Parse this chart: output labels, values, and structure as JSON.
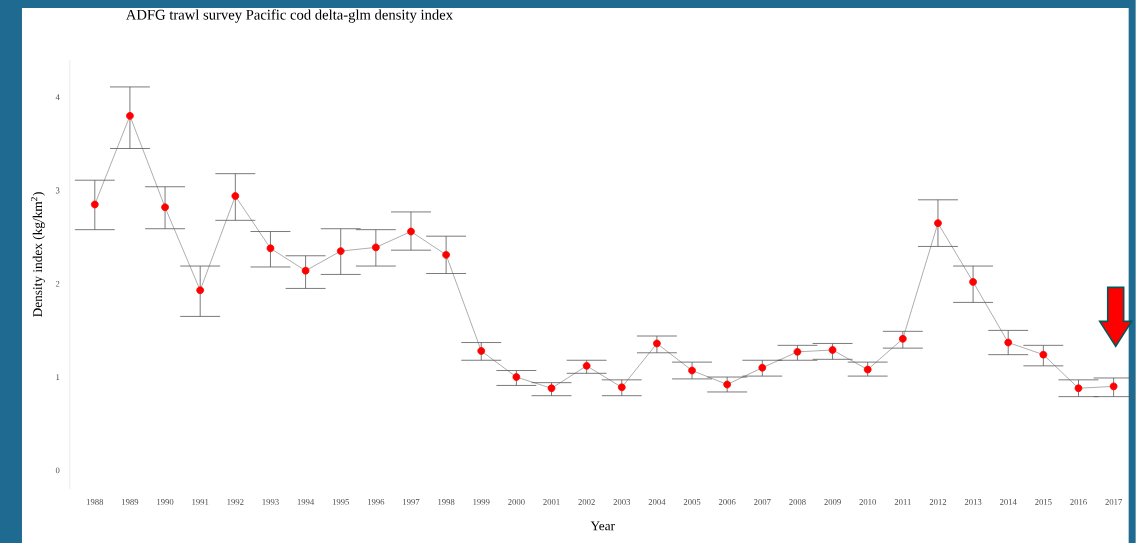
{
  "chart_data": {
    "type": "line",
    "title": "ADFG trawl survey Pacific cod delta-glm density index",
    "xlabel": "Year",
    "ylabel": "Density index (kg/km$^{2}$)",
    "categories": [
      "1988",
      "1989",
      "1990",
      "1991",
      "1992",
      "1993",
      "1994",
      "1995",
      "1996",
      "1997",
      "1998",
      "1999",
      "2000",
      "2001",
      "2002",
      "2003",
      "2004",
      "2005",
      "2006",
      "2007",
      "2008",
      "2009",
      "2010",
      "2011",
      "2012",
      "2013",
      "2014",
      "2015",
      "2016",
      "2017"
    ],
    "values": [
      2.85,
      3.8,
      2.82,
      1.93,
      2.94,
      2.38,
      2.14,
      2.35,
      2.39,
      2.56,
      2.31,
      1.28,
      1.0,
      0.88,
      1.12,
      0.89,
      1.36,
      1.07,
      0.92,
      1.1,
      1.27,
      1.29,
      1.08,
      1.41,
      2.65,
      2.02,
      1.37,
      1.24,
      0.88,
      0.9
    ],
    "errors": [
      [
        2.58,
        3.11
      ],
      [
        3.45,
        4.11
      ],
      [
        2.59,
        3.04
      ],
      [
        1.65,
        2.19
      ],
      [
        2.68,
        3.18
      ],
      [
        2.18,
        2.56
      ],
      [
        1.95,
        2.3
      ],
      [
        2.1,
        2.59
      ],
      [
        2.19,
        2.58
      ],
      [
        2.36,
        2.77
      ],
      [
        2.11,
        2.51
      ],
      [
        1.18,
        1.37
      ],
      [
        0.91,
        1.07
      ],
      [
        0.8,
        0.94
      ],
      [
        1.04,
        1.18
      ],
      [
        0.8,
        0.97
      ],
      [
        1.26,
        1.44
      ],
      [
        0.98,
        1.16
      ],
      [
        0.84,
        1.0
      ],
      [
        1.01,
        1.18
      ],
      [
        1.18,
        1.34
      ],
      [
        1.19,
        1.36
      ],
      [
        1.01,
        1.16
      ],
      [
        1.31,
        1.49
      ],
      [
        2.4,
        2.9
      ],
      [
        1.8,
        2.19
      ],
      [
        1.24,
        1.5
      ],
      [
        1.12,
        1.34
      ],
      [
        0.79,
        0.97
      ],
      [
        0.79,
        0.99
      ]
    ],
    "color": "#ff0000",
    "marker": "circle",
    "line_style": "solid",
    "ylim": [
      -0.2,
      4.4
    ],
    "yticks": [
      0,
      1,
      2,
      3,
      4
    ]
  }
}
